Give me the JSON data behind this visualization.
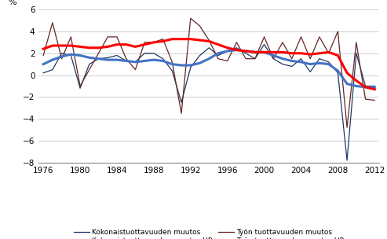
{
  "years": [
    1976,
    1977,
    1978,
    1979,
    1980,
    1981,
    1982,
    1983,
    1984,
    1985,
    1986,
    1987,
    1988,
    1989,
    1990,
    1991,
    1992,
    1993,
    1994,
    1995,
    1996,
    1997,
    1998,
    1999,
    2000,
    2001,
    2002,
    2003,
    2004,
    2005,
    2006,
    2007,
    2008,
    2009,
    2010,
    2011,
    2012
  ],
  "kokon_muutos": [
    0.2,
    0.5,
    2.0,
    1.8,
    -1.2,
    1.0,
    1.5,
    1.6,
    1.8,
    1.3,
    1.2,
    2.0,
    2.0,
    1.5,
    0.4,
    -2.5,
    0.7,
    1.8,
    2.5,
    1.8,
    2.2,
    2.5,
    2.0,
    1.5,
    2.8,
    1.5,
    1.0,
    0.8,
    1.5,
    0.3,
    1.5,
    1.2,
    0.2,
    -7.8,
    2.0,
    -1.0,
    -1.0
  ],
  "kokon_hp": [
    1.0,
    1.4,
    1.7,
    1.9,
    1.8,
    1.6,
    1.5,
    1.4,
    1.4,
    1.3,
    1.2,
    1.3,
    1.4,
    1.3,
    1.0,
    0.9,
    0.9,
    1.1,
    1.5,
    2.0,
    2.2,
    2.3,
    2.2,
    2.1,
    2.1,
    1.8,
    1.5,
    1.3,
    1.2,
    1.0,
    1.1,
    1.0,
    0.4,
    -0.8,
    -1.0,
    -1.1,
    -1.1
  ],
  "tyon_muutos": [
    1.8,
    4.8,
    1.5,
    3.5,
    -1.0,
    0.5,
    2.0,
    3.5,
    3.5,
    1.5,
    0.5,
    3.0,
    3.0,
    3.3,
    1.2,
    -3.5,
    5.2,
    4.5,
    3.2,
    1.5,
    1.3,
    3.0,
    1.5,
    1.5,
    3.5,
    1.5,
    3.0,
    1.5,
    3.5,
    1.5,
    3.5,
    2.0,
    4.0,
    -4.8,
    3.0,
    -2.2,
    -2.3
  ],
  "tyon_hp": [
    2.4,
    2.7,
    2.7,
    2.7,
    2.6,
    2.5,
    2.5,
    2.6,
    2.8,
    2.8,
    2.6,
    2.8,
    3.0,
    3.1,
    3.3,
    3.3,
    3.3,
    3.2,
    3.1,
    2.8,
    2.5,
    2.3,
    2.2,
    2.1,
    2.1,
    2.1,
    2.1,
    2.0,
    2.0,
    1.9,
    2.0,
    2.1,
    1.8,
    0.2,
    -0.5,
    -1.1,
    -1.3
  ],
  "ylim": [
    -8,
    6
  ],
  "yticks": [
    -8,
    -6,
    -4,
    -2,
    0,
    2,
    4,
    6
  ],
  "xticks": [
    1976,
    1980,
    1984,
    1988,
    1992,
    1996,
    2000,
    2004,
    2008,
    2012
  ],
  "color_kokon_muutos": "#1F3864",
  "color_kokon_hp": "#4472C4",
  "color_tyon_muutos": "#632523",
  "color_tyon_hp": "#FF0000",
  "lw_thin": 0.9,
  "lw_thick": 2.2,
  "legend_labels": [
    "Kokonaistuottavuuden muutos",
    "Kokonaistuottavuuden muutos HP",
    "Työn tuottavuuden muutos",
    "Työn tuottavuuden muutos HP"
  ],
  "background_color": "#FFFFFF",
  "grid_color": "#BBBBBB"
}
